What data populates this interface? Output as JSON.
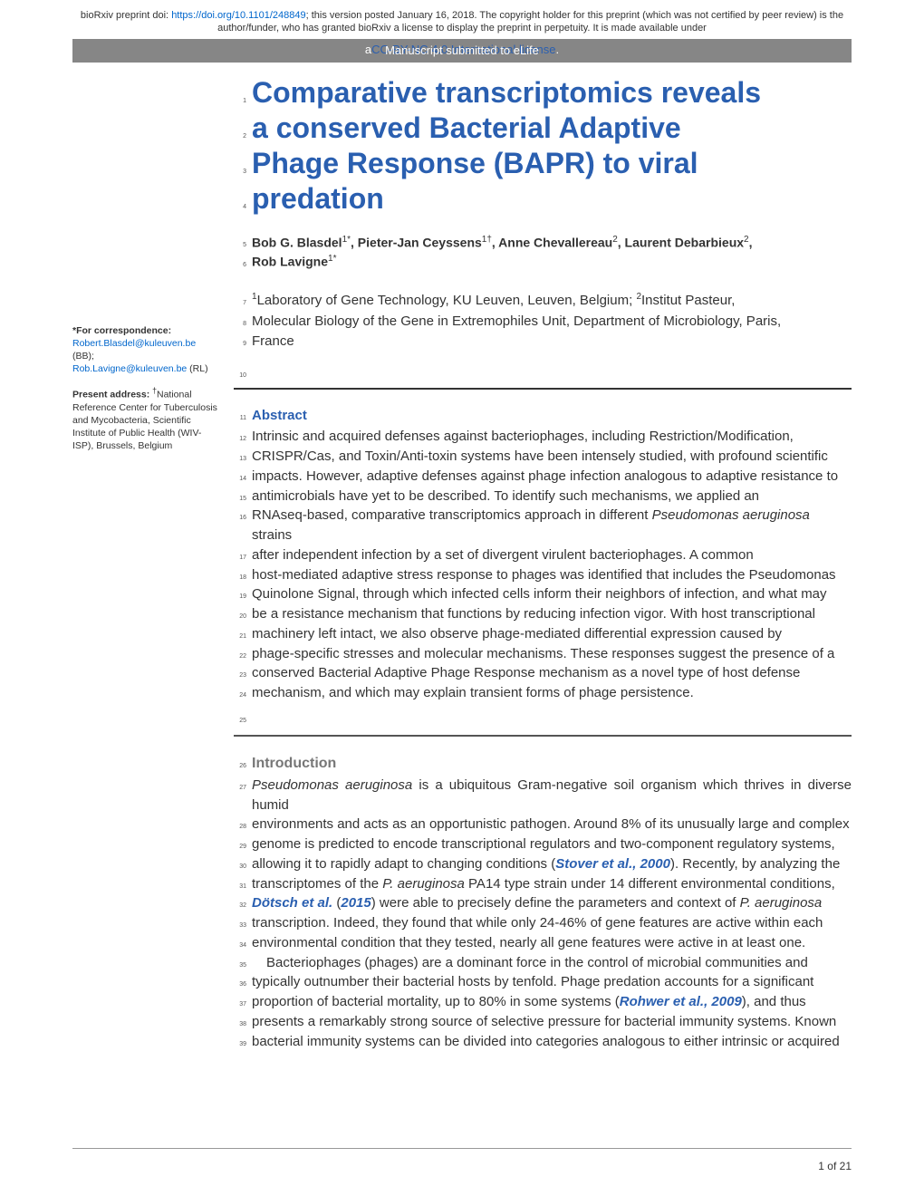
{
  "preprint": {
    "prefix": "bioRxiv preprint doi: ",
    "doi": "https://doi.org/10.1101/248849",
    "rest": "; this version posted January 16, 2018. The copyright holder for this preprint (which was not certified by peer review) is the author/funder, who has granted bioRxiv a license to display the preprint in perpetuity. It is made available under"
  },
  "license": {
    "prefix": "a",
    "text": "CC-BY-NC 4.0 International license",
    "suffix": "."
  },
  "graybar": "Manuscript submitted to eLife",
  "title": {
    "l1": {
      "n": "1",
      "t": "Comparative transcriptomics reveals"
    },
    "l2": {
      "n": "2",
      "t": "a conserved Bacterial Adaptive"
    },
    "l3": {
      "n": "3",
      "t": "Phage Response (BAPR) to viral"
    },
    "l4": {
      "n": "4",
      "t": "predation"
    }
  },
  "authors": {
    "l5": {
      "n": "5",
      "t": "Bob G. Blasdel",
      "s": "1*",
      "t2": ", Pieter-Jan Ceyssens",
      "s2": "1†",
      "t3": ", Anne Chevallereau",
      "s3": "2",
      "t4": ", Laurent Debarbieux",
      "s4": "2",
      "t5": ","
    },
    "l6": {
      "n": "6",
      "t": "Rob Lavigne",
      "s": "1*"
    }
  },
  "affil": {
    "l7": {
      "n": "7",
      "t1": "Laboratory of Gene Technology, KU Leuven, Leuven, Belgium; ",
      "t2": "Institut Pasteur,"
    },
    "l8": {
      "n": "8",
      "t": "Molecular Biology of the Gene in Extremophiles Unit, Department of Microbiology, Paris,"
    },
    "l9": {
      "n": "9",
      "t": "France"
    }
  },
  "sidebar": {
    "corr": {
      "hdr": "*For correspondence:",
      "e1": "Robert.Blasdel@kuleuven.be",
      "e1s": " (BB);",
      "e2": "Rob.Lavigne@kuleuven.be",
      "e2s": " (RL)"
    },
    "addr": {
      "hdr": "Present address: ",
      "sup": "†",
      "t": "National Reference Center for Tuberculosis and Mycobacteria, Scientific Institute of Public Health (WIV-ISP), Brussels, Belgium"
    }
  },
  "ln10": "10",
  "abstract": {
    "head": {
      "n": "11",
      "t": "Abstract"
    },
    "lines": [
      {
        "n": "12",
        "t": "Intrinsic and acquired defenses against bacteriophages, including Restriction/Modification,"
      },
      {
        "n": "13",
        "t": "CRISPR/Cas, and Toxin/Anti-toxin systems have been intensely studied, with profound scientific"
      },
      {
        "n": "14",
        "t": "impacts. However, adaptive defenses against phage infection analogous to adaptive resistance to"
      },
      {
        "n": "15",
        "t": "antimicrobials have yet to be described. To identify such mechanisms, we applied an"
      },
      {
        "n": "16",
        "pre": "RNAseq-based, comparative transcriptomics approach in different ",
        "em": "Pseudomonas aeruginosa",
        "post": " strains"
      },
      {
        "n": "17",
        "t": "after independent infection by a set of divergent virulent bacteriophages. A common"
      },
      {
        "n": "18",
        "t": "host-mediated adaptive stress response to phages was identified that includes the Pseudomonas"
      },
      {
        "n": "19",
        "t": "Quinolone Signal, through which infected cells inform their neighbors of infection, and what may"
      },
      {
        "n": "20",
        "t": "be a resistance mechanism that functions by reducing infection vigor. With host transcriptional"
      },
      {
        "n": "21",
        "t": "machinery left intact, we also observe phage-mediated differential expression caused by"
      },
      {
        "n": "22",
        "t": "phage-specific stresses and molecular mechanisms. These responses suggest the presence of a"
      },
      {
        "n": "23",
        "t": "conserved Bacterial Adaptive Phage Response mechanism as a novel type of host defense"
      },
      {
        "n": "24",
        "t": "mechanism, and which may explain transient forms of phage persistence."
      }
    ]
  },
  "ln25": "25",
  "intro": {
    "head": {
      "n": "26",
      "t": "Introduction"
    },
    "lines": [
      {
        "n": "27",
        "em1": "Pseudomonas aeruginosa",
        "t": " is a ubiquitous Gram-negative soil organism which thrives in diverse humid"
      },
      {
        "n": "28",
        "t": "environments and acts as an opportunistic pathogen. Around 8% of its unusually large and complex"
      },
      {
        "n": "29",
        "t": "genome is predicted to encode transcriptional regulators and two-component regulatory systems,"
      },
      {
        "n": "30",
        "pre": "allowing it to rapidly adapt to changing conditions (",
        "cite": "Stover et al., 2000",
        "post": "). Recently, by analyzing the"
      },
      {
        "n": "31",
        "pre": "transcriptomes of the ",
        "em": "P. aeruginosa",
        "post": " PA14 type strain under 14 different environmental conditions,"
      },
      {
        "n": "32",
        "cite1": "Dötsch et al.",
        "t1": " (",
        "cite2": "2015",
        "t2": ") were able to precisely define the parameters and context of ",
        "em": "P. aeruginosa"
      },
      {
        "n": "33",
        "t": "transcription. Indeed, they found that while only 24-46% of gene features are active within each"
      },
      {
        "n": "34",
        "t": "environmental condition that they tested, nearly all gene features were active in at least one."
      },
      {
        "n": "35",
        "indent": true,
        "t": "Bacteriophages (phages) are a dominant force in the control of microbial communities and"
      },
      {
        "n": "36",
        "t": "typically outnumber their bacterial hosts by tenfold. Phage predation accounts for a significant"
      },
      {
        "n": "37",
        "pre": "proportion of bacterial mortality, up to 80% in some systems (",
        "cite": "Rohwer et al., 2009",
        "post": "), and thus"
      },
      {
        "n": "38",
        "t": "presents a remarkably strong source of selective pressure for bacterial immunity systems. Known"
      },
      {
        "n": "39",
        "t": "bacterial immunity systems can be divided into categories analogous to either intrinsic or acquired"
      }
    ]
  },
  "footer": "1 of 21"
}
